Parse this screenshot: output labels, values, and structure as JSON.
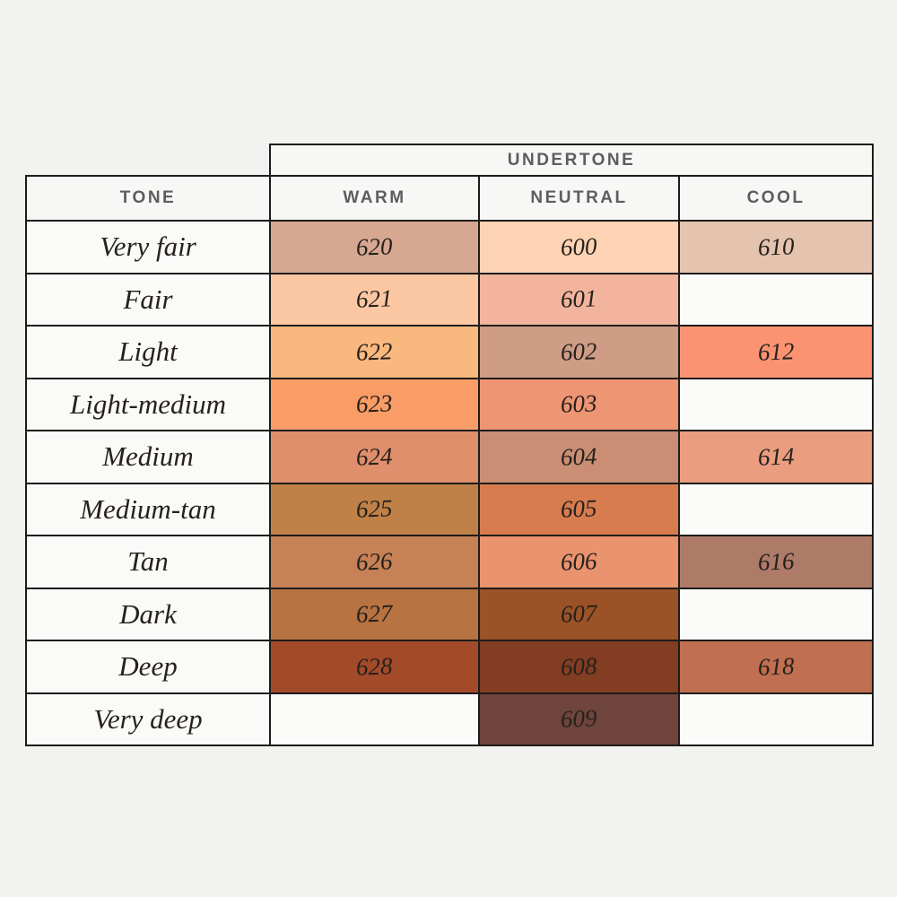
{
  "palette": {
    "page_bg": "#f2f2f1",
    "cell_bg": "#fafaf9",
    "empty_cell_bg": "#fbfbfa",
    "header_bg": "#f7f7f6",
    "border": "#1e1c1a",
    "header_text": "#5d5d5d",
    "ink": "#26211c"
  },
  "chart_data": {
    "type": "table",
    "col_group_label": "UNDERTONE",
    "row_header_label": "TONE",
    "columns": [
      "WARM",
      "NEUTRAL",
      "COOL"
    ],
    "rows": [
      {
        "tone": "Very fair",
        "warm": {
          "shade": "620",
          "color": "#d6a892"
        },
        "neutral": {
          "shade": "600",
          "color": "#fdd3b4"
        },
        "cool": {
          "shade": "610",
          "color": "#e4c4af"
        }
      },
      {
        "tone": "Fair",
        "warm": {
          "shade": "621",
          "color": "#fcc7a3"
        },
        "neutral": {
          "shade": "601",
          "color": "#f2b49d"
        },
        "cool": null
      },
      {
        "tone": "Light",
        "warm": {
          "shade": "622",
          "color": "#f9b87e"
        },
        "neutral": {
          "shade": "602",
          "color": "#cf9c86"
        },
        "cool": {
          "shade": "612",
          "color": "#fb9372"
        }
      },
      {
        "tone": "Light-medium",
        "warm": {
          "shade": "623",
          "color": "#fa9c66"
        },
        "neutral": {
          "shade": "603",
          "color": "#ee9574"
        },
        "cool": null
      },
      {
        "tone": "Medium",
        "warm": {
          "shade": "624",
          "color": "#e08f6c"
        },
        "neutral": {
          "shade": "604",
          "color": "#c98e73"
        },
        "cool": {
          "shade": "614",
          "color": "#ea9d7f"
        }
      },
      {
        "tone": "Medium-tan",
        "warm": {
          "shade": "625",
          "color": "#bf8148"
        },
        "neutral": {
          "shade": "605",
          "color": "#d77c4e"
        },
        "cool": null
      },
      {
        "tone": "Tan",
        "warm": {
          "shade": "626",
          "color": "#c68157"
        },
        "neutral": {
          "shade": "606",
          "color": "#e9936f"
        },
        "cool": {
          "shade": "616",
          "color": "#ae7b69"
        }
      },
      {
        "tone": "Dark",
        "warm": {
          "shade": "627",
          "color": "#b77342"
        },
        "neutral": {
          "shade": "607",
          "color": "#9a5226"
        },
        "cool": null
      },
      {
        "tone": "Deep",
        "warm": {
          "shade": "628",
          "color": "#a34a2b"
        },
        "neutral": {
          "shade": "608",
          "color": "#823d22"
        },
        "cool": {
          "shade": "618",
          "color": "#c06f51"
        }
      },
      {
        "tone": "Very deep",
        "warm": null,
        "neutral": {
          "shade": "609",
          "color": "#6e443c"
        },
        "cool": null
      }
    ]
  }
}
